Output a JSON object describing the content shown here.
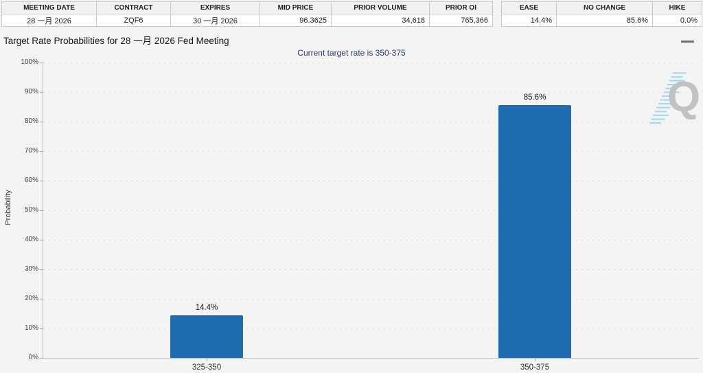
{
  "left_table": {
    "headers": [
      "MEETING DATE",
      "CONTRACT",
      "EXPIRES",
      "MID PRICE",
      "PRIOR VOLUME",
      "PRIOR OI"
    ],
    "row": [
      "28 一月 2026",
      "ZQF6",
      "30 一月 2026",
      "96.3625",
      "34,618",
      "765,366"
    ]
  },
  "right_table": {
    "headers": [
      "EASE",
      "NO CHANGE",
      "HIKE"
    ],
    "row": [
      "14.4%",
      "85.6%",
      "0.0%"
    ]
  },
  "header": {
    "title": "Target Rate Probabilities for 28 一月 2026 Fed Meeting"
  },
  "watermark": {
    "letter": "Q"
  },
  "chart_data": {
    "type": "bar",
    "title": "Current target rate is 350-375",
    "categories": [
      "325-350",
      "350-375"
    ],
    "values": [
      14.4,
      85.6
    ],
    "value_labels": [
      "14.4%",
      "85.6%"
    ],
    "xlabel": "",
    "ylabel": "Probability",
    "ylim": [
      0,
      100
    ],
    "ytick_step": 10,
    "ytick_suffix": "%",
    "grid": "dotted-horizontal",
    "legend": "none",
    "bar_color": "#1f6cb1",
    "axis_color": "#bdbdbd",
    "stripe_color": "#a9d8ee",
    "watermark_color": "#c2c2c2"
  }
}
